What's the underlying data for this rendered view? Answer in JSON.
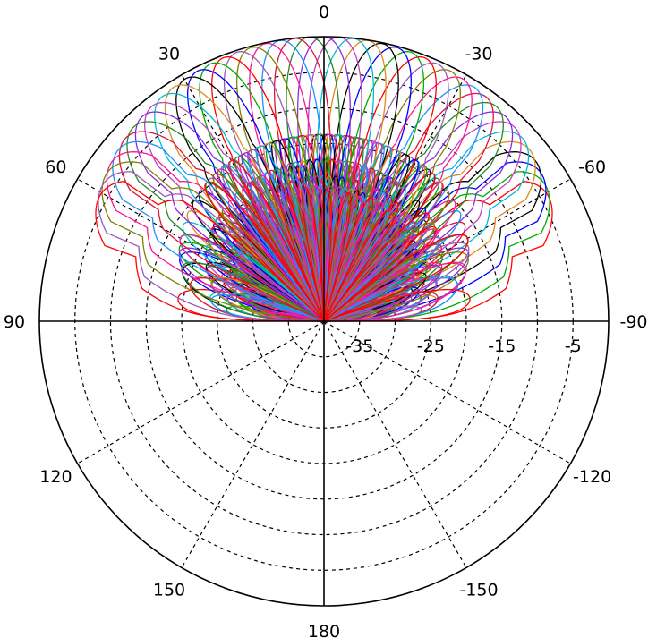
{
  "chart_data": {
    "type": "polar",
    "title": "",
    "angle_unit": "degrees",
    "angle_direction": "zero at top, increasing counter-clockwise",
    "angle_ticks": [
      0,
      30,
      60,
      90,
      120,
      150,
      180,
      -150,
      -120,
      -90,
      -60,
      -30
    ],
    "angle_tick_labels": [
      "0",
      "30",
      "60",
      "90",
      "120",
      "150",
      "180",
      "-150",
      "-120",
      "-90",
      "-60",
      "-30"
    ],
    "radial_range": [
      -40,
      0
    ],
    "radial_ticks": [
      -35,
      -30,
      -25,
      -20,
      -15,
      -10,
      -5,
      0
    ],
    "radial_tick_labels": [
      "-35",
      "-25",
      "-15",
      "-5"
    ],
    "radial_label_angle": -90,
    "grid": true,
    "grid_style": "dashed",
    "legend": "none",
    "series_description": "about 40 steered beam patterns, each with a main lobe of about 0 peak at a steering angle between -63 and 63 degrees, sidelobes near -14 on the -63 to 63 envelope, and no visible response toward the back",
    "steering_angles": [
      -63,
      -60,
      -57,
      -54,
      -51,
      -48,
      -45,
      -42,
      -39,
      -36,
      -33,
      -30,
      -27,
      -24,
      -21,
      -18,
      -15,
      -12,
      -9,
      -6,
      -3,
      0,
      3,
      6,
      9,
      12,
      15,
      18,
      21,
      24,
      27,
      30,
      33,
      36,
      39,
      42,
      45,
      48,
      51,
      54,
      57,
      60,
      63
    ],
    "main_lobe_peak": 0,
    "sidelobe_level": -14,
    "series_colors": [
      "#ff0000",
      "#00aa00",
      "#0000ff",
      "#000000",
      "#e08a1e",
      "#00bcd4",
      "#c040c0",
      "#8a2be2",
      "#228b22",
      "#dc143c",
      "#1e90ff",
      "#ff1493",
      "#808000",
      "#9b59b6"
    ]
  }
}
